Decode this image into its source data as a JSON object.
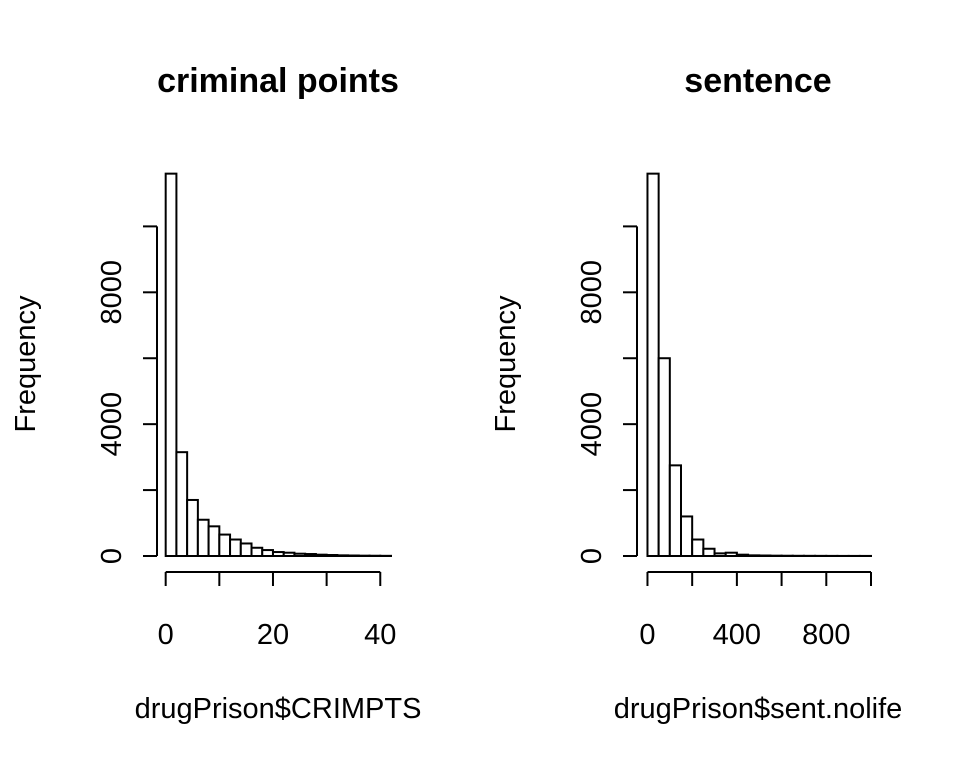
{
  "chart_data": [
    {
      "type": "bar",
      "title": "criminal points",
      "xlabel": "drugPrison$CRIMPTS",
      "ylabel": "Frequency",
      "xlim": [
        -0.5,
        42
      ],
      "ylim": [
        0,
        11650
      ],
      "x_ticks": [
        0,
        10,
        20,
        30,
        40
      ],
      "x_tick_labels": [
        "0",
        "20",
        "40"
      ],
      "x_tick_label_values": [
        0,
        20,
        40
      ],
      "y_ticks": [
        0,
        2000,
        4000,
        6000,
        8000,
        10000
      ],
      "y_tick_labels": [
        "0",
        "4000",
        "8000"
      ],
      "y_tick_label_values": [
        0,
        4000,
        8000
      ],
      "bin_edges": [
        0,
        2,
        4,
        6,
        8,
        10,
        12,
        14,
        16,
        18,
        20,
        22,
        24,
        26,
        28,
        30,
        32,
        34,
        36,
        38,
        40,
        42
      ],
      "values": [
        11600,
        3150,
        1700,
        1100,
        900,
        650,
        500,
        380,
        250,
        180,
        120,
        100,
        70,
        60,
        40,
        30,
        20,
        15,
        10,
        8,
        5
      ]
    },
    {
      "type": "bar",
      "title": "sentence",
      "xlabel": "drugPrison$sent.nolife",
      "ylabel": "Frequency",
      "xlim": [
        -20,
        1000
      ],
      "ylim": [
        0,
        11650
      ],
      "x_ticks": [
        0,
        200,
        400,
        600,
        800,
        1000
      ],
      "x_tick_labels": [
        "0",
        "400",
        "800"
      ],
      "x_tick_label_values": [
        0,
        400,
        800
      ],
      "y_ticks": [
        0,
        2000,
        4000,
        6000,
        8000,
        10000
      ],
      "y_tick_labels": [
        "0",
        "4000",
        "8000"
      ],
      "y_tick_label_values": [
        0,
        4000,
        8000
      ],
      "bin_edges": [
        0,
        50,
        100,
        150,
        200,
        250,
        300,
        350,
        400,
        450,
        500,
        550,
        600,
        650,
        700,
        750,
        800,
        850,
        900,
        950,
        1000
      ],
      "values": [
        11600,
        6000,
        2750,
        1200,
        500,
        220,
        80,
        100,
        40,
        20,
        15,
        10,
        8,
        6,
        5,
        4,
        3,
        2,
        2,
        2
      ]
    }
  ]
}
